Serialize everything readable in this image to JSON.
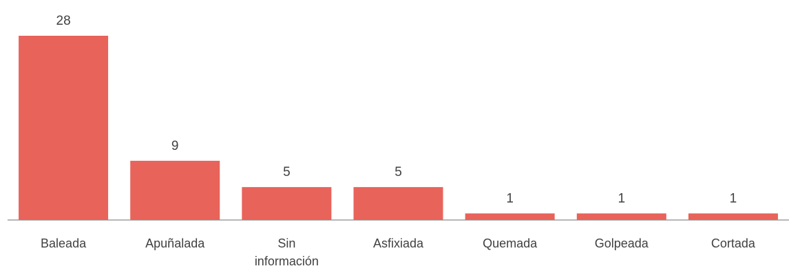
{
  "chart_data": {
    "type": "bar",
    "categories": [
      "Baleada",
      "Apuñalada",
      "Sin información",
      "Asfixiada",
      "Quemada",
      "Golpeada",
      "Cortada"
    ],
    "values": [
      28,
      9,
      5,
      5,
      1,
      1,
      1
    ],
    "color": "#e8635a"
  }
}
